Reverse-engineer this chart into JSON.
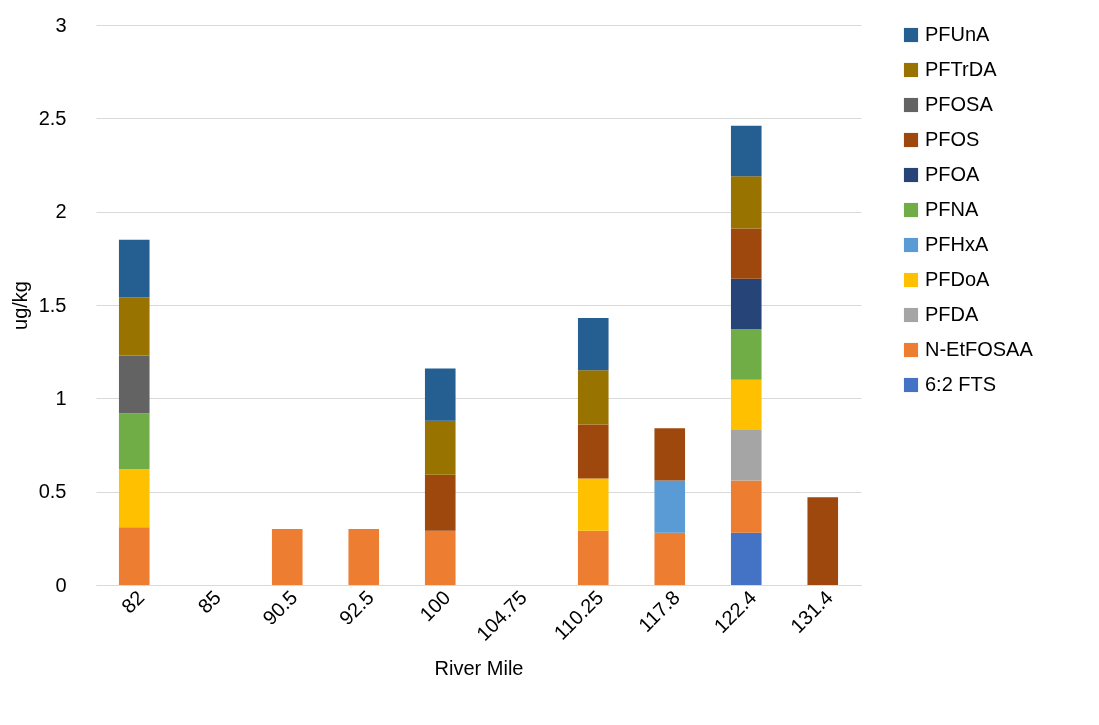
{
  "chart_data": {
    "type": "bar",
    "stacked": true,
    "xlabel": "River Mile",
    "ylabel": "ug/kg",
    "categories": [
      "82",
      "85",
      "90.5",
      "92.5",
      "100",
      "104.75",
      "110.25",
      "117.8",
      "122.4",
      "131.4"
    ],
    "ylim": [
      0,
      3
    ],
    "yticks": [
      0,
      0.5,
      1,
      1.5,
      2,
      2.5,
      3
    ],
    "grid": "y",
    "legend": "right",
    "series": [
      {
        "name": "6:2 FTS",
        "color": "#4472c4",
        "values": [
          null,
          null,
          null,
          null,
          null,
          null,
          null,
          null,
          0.28,
          null
        ]
      },
      {
        "name": "N-EtFOSAA",
        "color": "#ed7d31",
        "values": [
          0.31,
          null,
          0.3,
          0.3,
          0.29,
          null,
          0.29,
          0.28,
          0.28,
          null
        ]
      },
      {
        "name": "PFDA",
        "color": "#a5a5a5",
        "values": [
          null,
          null,
          null,
          null,
          null,
          null,
          null,
          null,
          0.27,
          null
        ]
      },
      {
        "name": "PFDoA",
        "color": "#ffc000",
        "values": [
          0.31,
          null,
          null,
          null,
          null,
          null,
          0.28,
          null,
          0.27,
          null
        ]
      },
      {
        "name": "PFHxA",
        "color": "#5b9bd5",
        "values": [
          null,
          null,
          null,
          null,
          null,
          null,
          null,
          0.28,
          null,
          null
        ]
      },
      {
        "name": "PFNA",
        "color": "#70ad47",
        "values": [
          0.3,
          null,
          null,
          null,
          null,
          null,
          null,
          null,
          0.27,
          null
        ]
      },
      {
        "name": "PFOA",
        "color": "#264478",
        "values": [
          null,
          null,
          null,
          null,
          null,
          null,
          null,
          null,
          0.27,
          null
        ]
      },
      {
        "name": "PFOS",
        "color": "#9e480e",
        "values": [
          null,
          null,
          null,
          null,
          0.3,
          null,
          0.29,
          0.28,
          0.27,
          0.47
        ]
      },
      {
        "name": "PFOSA",
        "color": "#636363",
        "values": [
          0.31,
          null,
          null,
          null,
          null,
          null,
          null,
          null,
          null,
          null
        ]
      },
      {
        "name": "PFTrDA",
        "color": "#997300",
        "values": [
          0.31,
          null,
          null,
          null,
          0.29,
          null,
          0.29,
          null,
          0.28,
          null
        ]
      },
      {
        "name": "PFUnA",
        "color": "#255e91",
        "values": [
          0.31,
          null,
          null,
          null,
          0.28,
          null,
          0.28,
          null,
          0.27,
          null
        ]
      }
    ]
  }
}
